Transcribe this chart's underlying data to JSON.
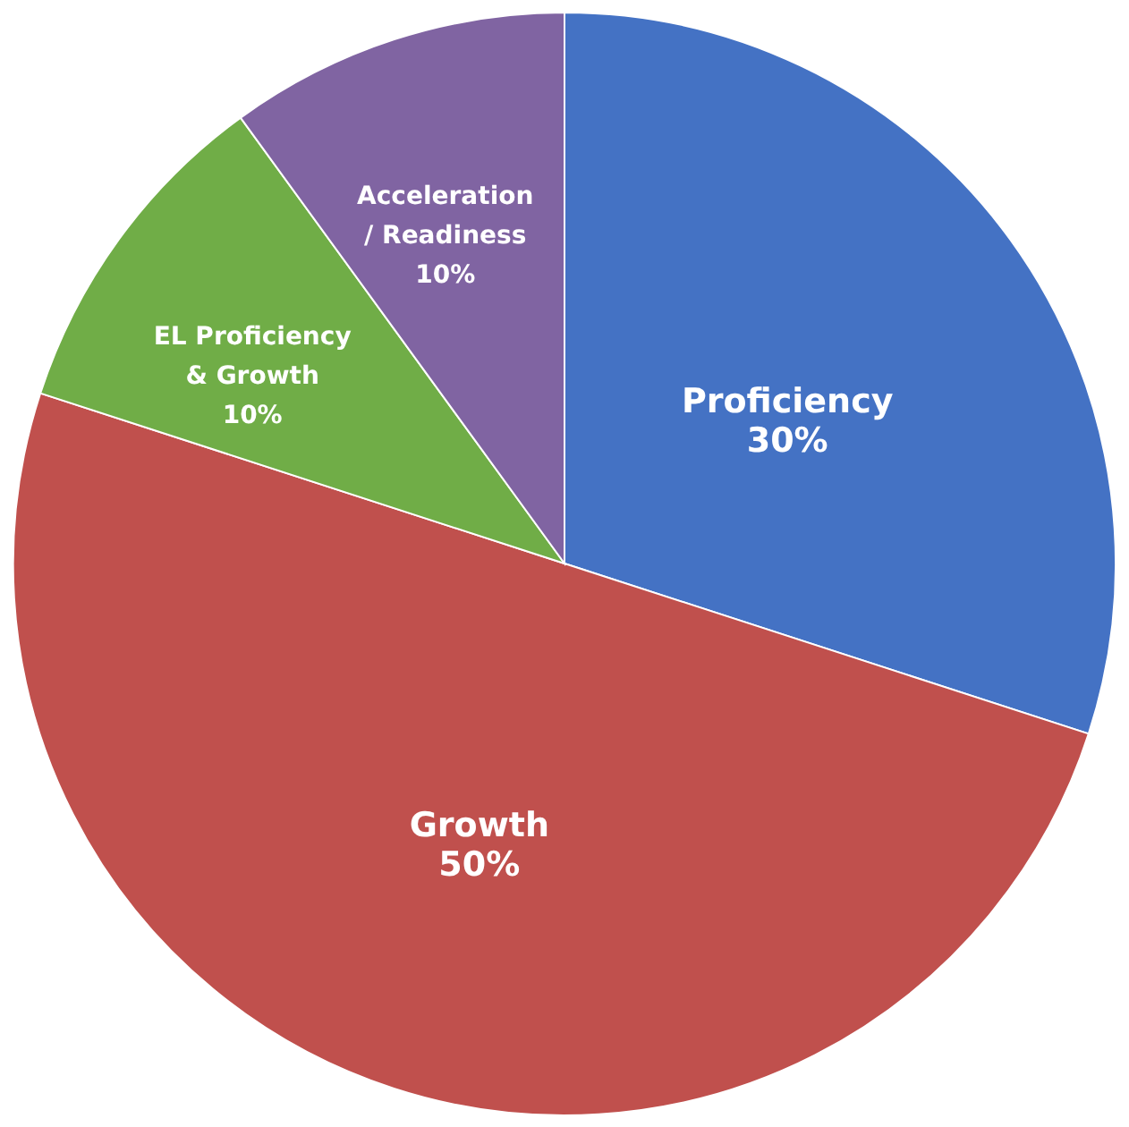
{
  "chart_data": {
    "type": "pie",
    "categories": [
      "Proficiency",
      "Growth",
      "EL Proficiency & Growth",
      "Acceleration / Readiness"
    ],
    "values": [
      30,
      50,
      10,
      10
    ],
    "colors": [
      "#4472c4",
      "#c0504d",
      "#70ad47",
      "#8064a2"
    ],
    "value_labels": [
      "30%",
      "50%",
      "10%",
      "10%"
    ]
  }
}
